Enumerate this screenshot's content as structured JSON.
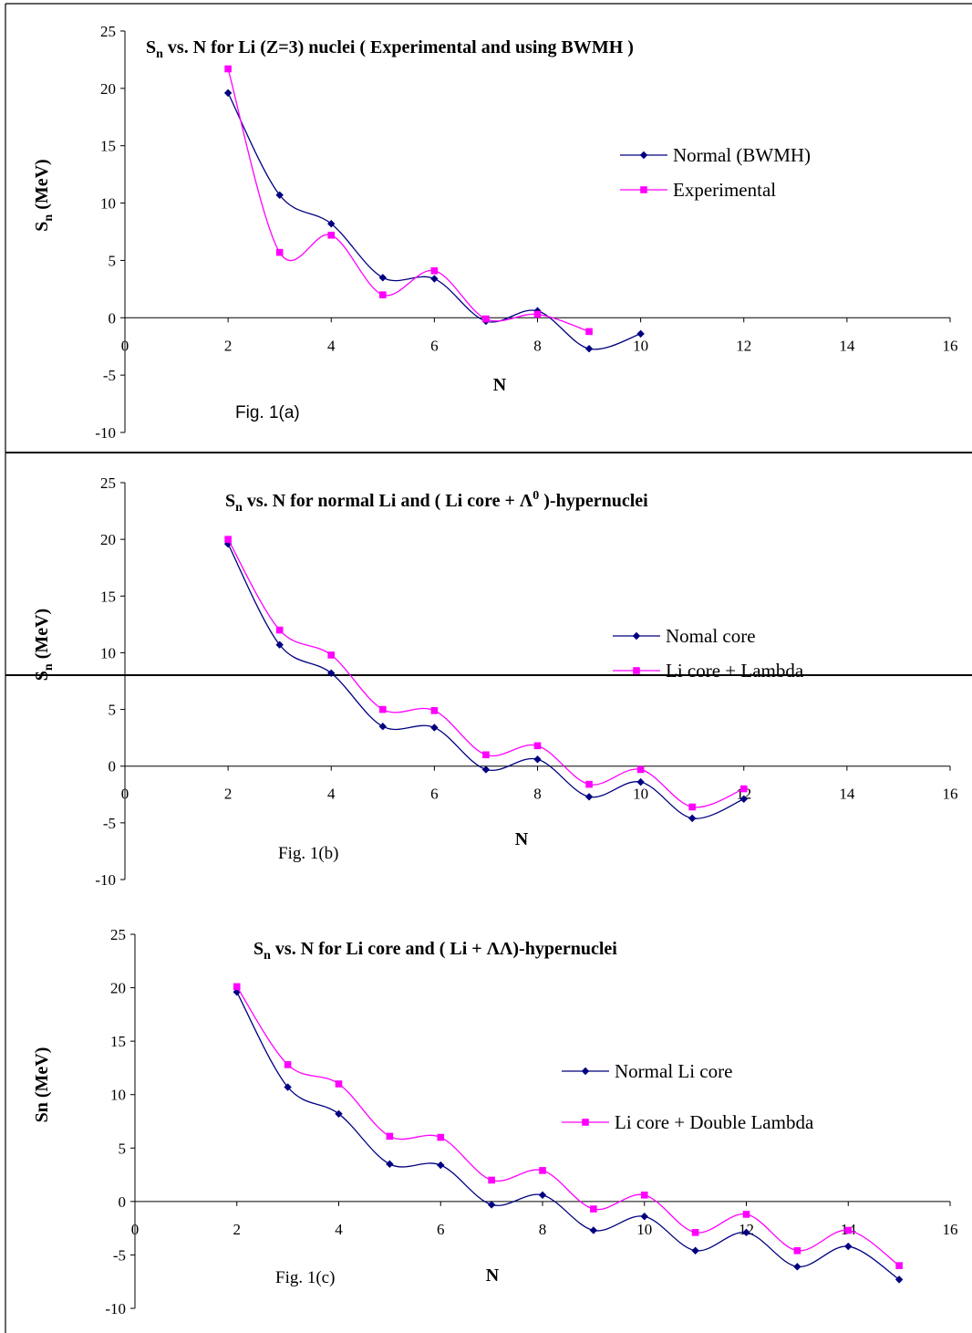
{
  "chart_data": [
    {
      "type": "line",
      "title": {
        "main": "S",
        "sub": "n",
        "rest": " vs. N for Li (Z=3) nuclei ( Experimental and using BWMH )"
      },
      "xlabel": "N",
      "ylabel": {
        "main": "S",
        "sub": "n",
        "rest": " (MeV)"
      },
      "figure_label": "Fig. 1(a)",
      "xlim": [
        0,
        16
      ],
      "ylim": [
        -10,
        25
      ],
      "x_ticks": [
        "0",
        "2",
        "4",
        "6",
        "8",
        "10",
        "12",
        "14",
        "16"
      ],
      "y_ticks": [
        "25",
        "20",
        "15",
        "10",
        "5",
        "0",
        "-5",
        "-10"
      ],
      "legend_position": "right",
      "series": [
        {
          "name": "Normal (BWMH)",
          "color": "#000080",
          "marker": "diamond",
          "x": [
            2,
            3,
            4,
            5,
            6,
            7,
            8,
            9,
            10
          ],
          "y": [
            19.6,
            10.7,
            8.2,
            3.5,
            3.4,
            -0.3,
            0.6,
            -2.7,
            -1.4
          ]
        },
        {
          "name": "Experimental",
          "color": "#ff00ff",
          "marker": "square",
          "x": [
            2,
            3,
            4,
            5,
            6,
            7,
            8,
            9
          ],
          "y": [
            21.7,
            5.7,
            7.2,
            2.0,
            4.1,
            -0.1,
            0.3,
            -1.2
          ]
        }
      ]
    },
    {
      "type": "line",
      "title": {
        "main": "S",
        "sub": "n",
        "rest": " vs. N for normal Li and ( Li core + ",
        "lambda": "Λ",
        "sup": "0",
        "rest2": " )-hypernuclei"
      },
      "xlabel": "N",
      "ylabel": {
        "main": "S",
        "sub": "n",
        "rest": " (MeV)"
      },
      "figure_label": "Fig. 1(b)",
      "xlim": [
        0,
        16
      ],
      "ylim": [
        -10,
        25
      ],
      "x_ticks": [
        "0",
        "2",
        "4",
        "6",
        "8",
        "10",
        "12",
        "14",
        "16"
      ],
      "y_ticks": [
        "25",
        "20",
        "15",
        "10",
        "5",
        "0",
        "-5",
        "-10"
      ],
      "legend_position": "right",
      "series": [
        {
          "name": "Nomal core",
          "color": "#000080",
          "marker": "diamond",
          "x": [
            2,
            3,
            4,
            5,
            6,
            7,
            8,
            9,
            10,
            11,
            12
          ],
          "y": [
            19.6,
            10.7,
            8.2,
            3.5,
            3.4,
            -0.3,
            0.6,
            -2.7,
            -1.4,
            -4.6,
            -2.9
          ]
        },
        {
          "name": "Li core + Lambda",
          "color": "#ff00ff",
          "marker": "square",
          "x": [
            2,
            3,
            4,
            5,
            6,
            7,
            8,
            9,
            10,
            11,
            12
          ],
          "y": [
            20.0,
            12.0,
            9.8,
            5.0,
            4.9,
            1.0,
            1.8,
            -1.6,
            -0.3,
            -3.6,
            -2.0
          ]
        }
      ]
    },
    {
      "type": "line",
      "title": {
        "main": "S",
        "sub": "n",
        "rest": " vs. N for Li core and ( Li + ",
        "lambda": "ΛΛ",
        "rest2": ")-hypernuclei"
      },
      "xlabel": "N",
      "ylabel": {
        "main": "Sn (MeV)"
      },
      "figure_label": "Fig. 1(c)",
      "xlim": [
        0,
        16
      ],
      "ylim": [
        -10,
        25
      ],
      "x_ticks": [
        "0",
        "2",
        "4",
        "6",
        "8",
        "10",
        "12",
        "14",
        "16"
      ],
      "y_ticks": [
        "25",
        "20",
        "15",
        "10",
        "5",
        "0",
        "-5",
        "-10"
      ],
      "legend_position": "right",
      "series": [
        {
          "name": "Normal Li core",
          "color": "#000080",
          "marker": "diamond",
          "x": [
            2,
            3,
            4,
            5,
            6,
            7,
            8,
            9,
            10,
            11,
            12,
            13,
            14,
            15
          ],
          "y": [
            19.6,
            10.7,
            8.2,
            3.5,
            3.4,
            -0.3,
            0.6,
            -2.7,
            -1.4,
            -4.6,
            -2.9,
            -6.1,
            -4.2,
            -7.3
          ]
        },
        {
          "name": "Li core + Double Lambda",
          "color": "#ff00ff",
          "marker": "square",
          "x": [
            2,
            3,
            4,
            5,
            6,
            7,
            8,
            9,
            10,
            11,
            12,
            13,
            14,
            15
          ],
          "y": [
            20.1,
            12.8,
            11.0,
            6.1,
            6.0,
            2.0,
            2.9,
            -0.7,
            0.6,
            -2.9,
            -1.2,
            -4.6,
            -2.7,
            -6.0
          ]
        }
      ]
    }
  ]
}
